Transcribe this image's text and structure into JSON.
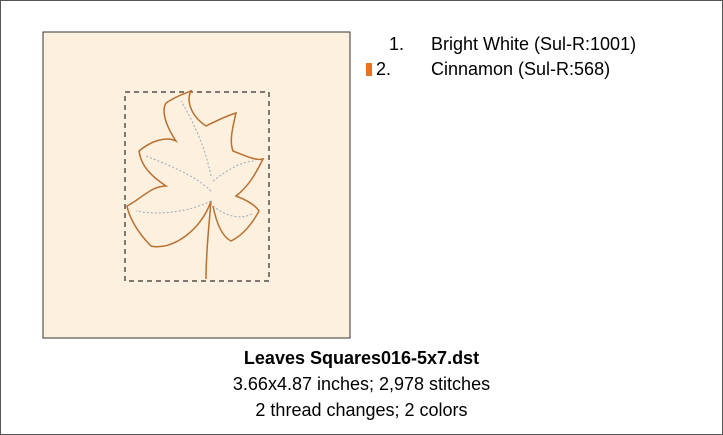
{
  "threads": [
    {
      "number": "1.",
      "name": "Bright White (Sul-R:1001)"
    },
    {
      "number": "2.",
      "name": "Cinnamon (Sul-R:568)"
    }
  ],
  "design": {
    "filename": "Leaves Squares016-5x7.dst",
    "size_stitches": "3.66x4.87 inches; 2,978 stitches",
    "changes_colors": "2 thread changes; 2 colors"
  }
}
